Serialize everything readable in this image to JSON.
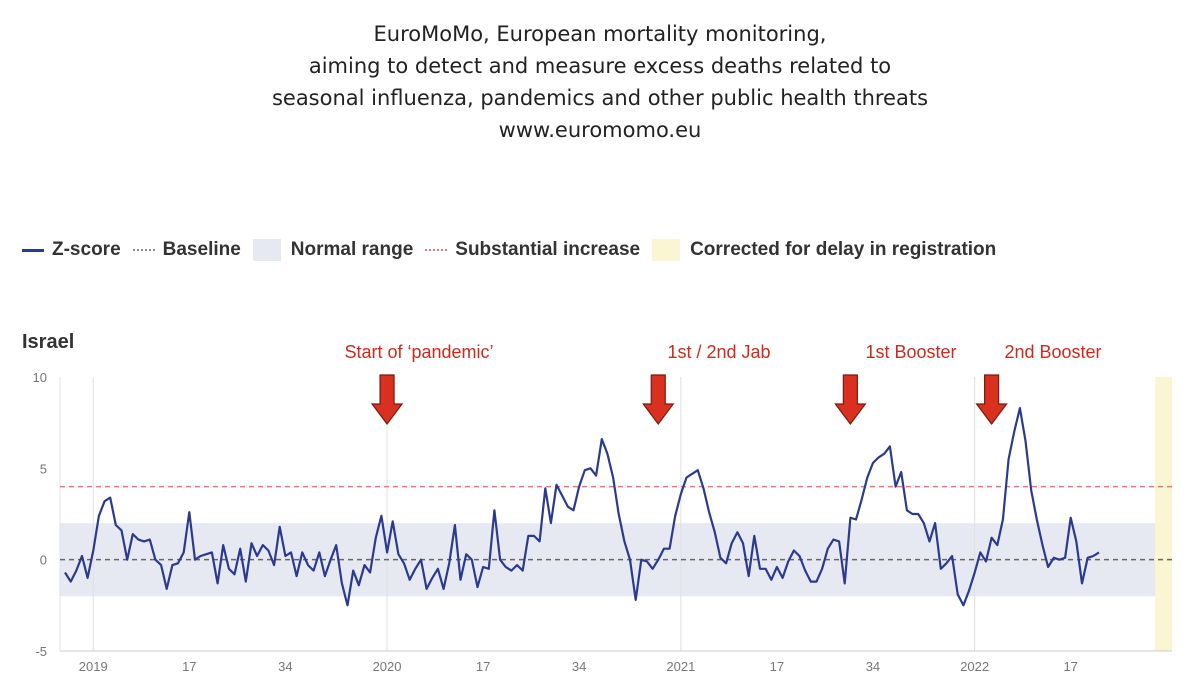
{
  "header": {
    "lines": [
      "EuroMoMo, European mortality monitoring,",
      "aiming to detect and measure excess deaths related to",
      "seasonal influenza, pandemics and other public health threats",
      "www.euromomo.eu"
    ]
  },
  "legend": [
    {
      "label": "Z-score",
      "swatch": "line",
      "color": "#2a3b8f"
    },
    {
      "label": "Baseline",
      "swatch": "dotted",
      "color": "#8a8a9a"
    },
    {
      "label": "Normal range",
      "swatch": "box",
      "color": "#e6e9f1"
    },
    {
      "label": "Substantial increase",
      "swatch": "dotted-red",
      "color": "#e07a7a"
    },
    {
      "label": "Corrected for delay in registration",
      "swatch": "box",
      "color": "#faf5d2"
    }
  ],
  "chart_data": {
    "type": "line",
    "country": "Israel",
    "ylim": [
      -5,
      10
    ],
    "y_ticks": [
      10,
      5,
      0,
      -5
    ],
    "x_tick_labels": [
      "2019",
      "17",
      "34",
      "2020",
      "17",
      "34",
      "2021",
      "17",
      "34",
      "2022",
      "17"
    ],
    "baseline": 0,
    "normal_range": [
      -2,
      2
    ],
    "substantial_increase": 4,
    "grid": "vertical lines at year starts",
    "colors": {
      "zscore": "#2a3b8f",
      "normal_range": "#e6e9f1",
      "delay_band": "#faf5d2",
      "substantial": "#e07a7a",
      "baseline": "#666666",
      "annotation": "#cc2a1e"
    },
    "series": [
      {
        "name": "Z-score",
        "x_start_week": "2018-W48",
        "values": [
          -0.7,
          -1.2,
          -0.6,
          0.2,
          -1.0,
          0.5,
          2.4,
          3.2,
          3.4,
          1.9,
          1.6,
          0.0,
          1.4,
          1.1,
          1.0,
          1.1,
          0.0,
          -0.3,
          -1.6,
          -0.3,
          -0.2,
          0.4,
          2.6,
          0.0,
          0.2,
          0.3,
          0.4,
          -1.3,
          0.8,
          -0.5,
          -0.8,
          0.6,
          -1.2,
          0.9,
          0.2,
          0.8,
          0.5,
          -0.3,
          1.8,
          0.2,
          0.4,
          -0.9,
          0.4,
          -0.3,
          -0.6,
          0.4,
          -0.9,
          0.0,
          0.8,
          -1.3,
          -2.5,
          -0.6,
          -1.4,
          -0.3,
          -0.7,
          1.2,
          2.4,
          0.4,
          2.1,
          0.3,
          -0.2,
          -1.1,
          -0.5,
          0.0,
          -1.6,
          -1.0,
          -0.5,
          -1.6,
          -0.2,
          1.9,
          -1.1,
          0.3,
          0.0,
          -1.5,
          -0.4,
          -0.5,
          2.7,
          0.0,
          -0.4,
          -0.6,
          -0.3,
          -0.6,
          1.3,
          1.3,
          1.0,
          3.9,
          2.0,
          4.1,
          3.5,
          2.9,
          2.7,
          4.0,
          4.9,
          5.0,
          4.6,
          6.6,
          5.8,
          4.5,
          2.5,
          1.0,
          0.0,
          -2.2,
          0.0,
          -0.1,
          -0.5,
          0.0,
          0.6,
          0.6,
          2.4,
          3.6,
          4.5,
          4.7,
          4.9,
          3.9,
          2.6,
          1.5,
          0.1,
          -0.2,
          0.9,
          1.5,
          0.9,
          -0.9,
          1.3,
          -0.5,
          -0.5,
          -1.1,
          -0.4,
          -1.0,
          -0.1,
          0.5,
          0.2,
          -0.6,
          -1.2,
          -1.2,
          -0.5,
          0.6,
          1.1,
          1.0,
          -1.3,
          2.3,
          2.2,
          3.3,
          4.5,
          5.3,
          5.6,
          5.8,
          6.2,
          4.0,
          4.8,
          2.7,
          2.5,
          2.5,
          2.0,
          1.0,
          2.0,
          -0.5,
          -0.2,
          0.2,
          -1.9,
          -2.5,
          -1.7,
          -0.7,
          0.4,
          -0.1,
          1.2,
          0.8,
          2.2,
          5.5,
          7.0,
          8.3,
          6.5,
          3.8,
          2.2,
          0.8,
          -0.4,
          0.1,
          0.0,
          0.1,
          2.3,
          1.0,
          -1.3,
          0.1,
          0.2,
          0.4
        ]
      }
    ],
    "annotations": [
      {
        "label": "Start of ‘pandemic’",
        "week": "2020-W01"
      },
      {
        "label": "1st / 2nd Jab",
        "week": "2020-W48"
      },
      {
        "label": "1st Booster",
        "week": "2021-W28"
      },
      {
        "label": "2nd Booster",
        "week": "2021-W48"
      }
    ]
  }
}
